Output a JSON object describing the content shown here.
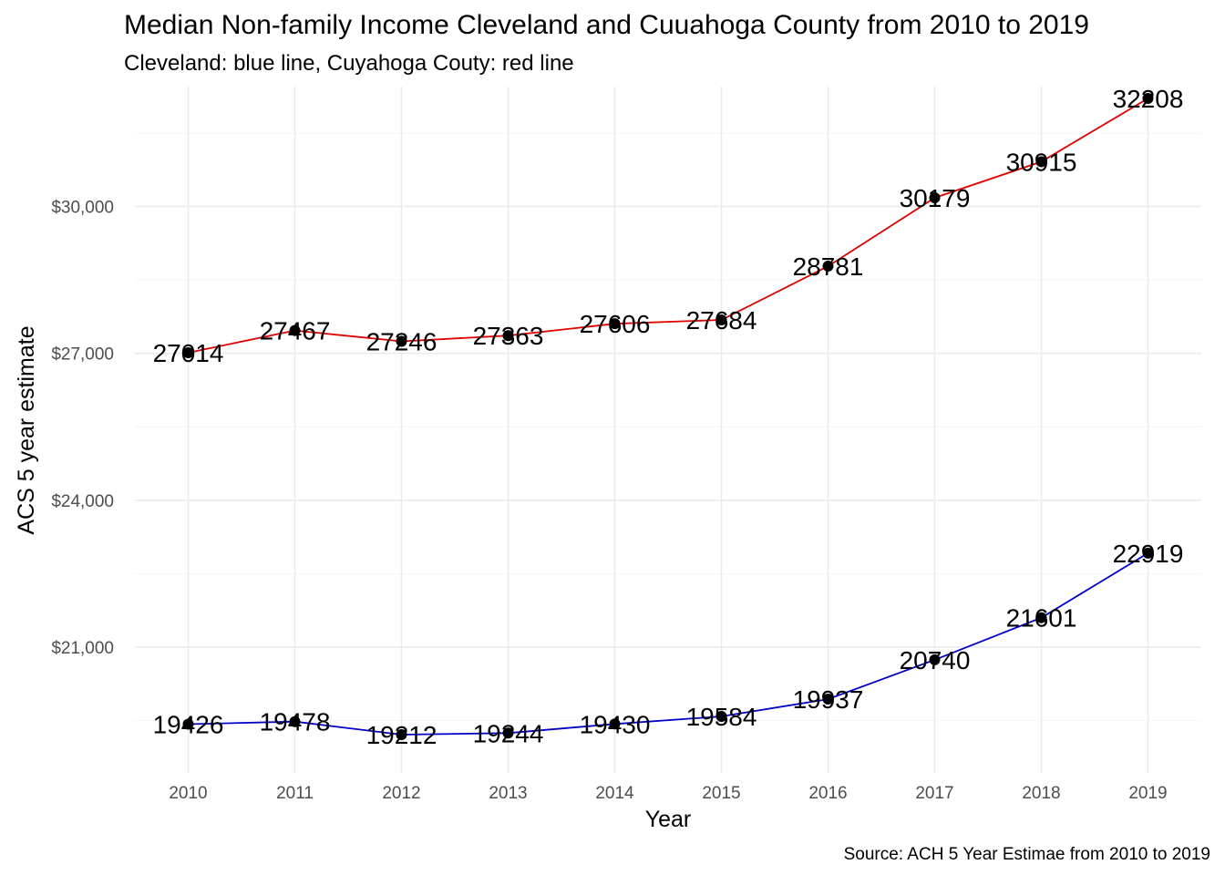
{
  "chart_data": {
    "type": "line",
    "title": "Median Non-family Income Cleveland and Cuuahoga County from 2010 to 2019",
    "subtitle": "Cleveland: blue line, Cuyahoga Couty: red line",
    "caption": "Source: ACH 5 Year Estimae from 2010 to 2019",
    "xlabel": "Year",
    "ylabel": "ACS 5 year estimate",
    "x": [
      2010,
      2011,
      2012,
      2013,
      2014,
      2015,
      2016,
      2017,
      2018,
      2019
    ],
    "x_tick_labels": [
      "2010",
      "2011",
      "2012",
      "2013",
      "2014",
      "2015",
      "2016",
      "2017",
      "2018",
      "2019"
    ],
    "y_ticks": [
      21000,
      24000,
      27000,
      30000
    ],
    "y_tick_labels": [
      "$21,000",
      "$24,000",
      "$27,000",
      "$30,000"
    ],
    "ylim": [
      18430,
      32450
    ],
    "grid": true,
    "series": [
      {
        "color": "#e00000",
        "values": [
          27014,
          27467,
          27246,
          27363,
          27606,
          27684,
          28781,
          30179,
          30915,
          32208
        ],
        "labels": [
          "27014",
          "27467",
          "27246",
          "27363",
          "27606",
          "27684",
          "28781",
          "30179",
          "30915",
          "32208"
        ]
      },
      {
        "color": "#0000c8",
        "values": [
          19426,
          19478,
          19212,
          19244,
          19430,
          19584,
          19937,
          20740,
          21601,
          22919
        ],
        "labels": [
          "19426",
          "19478",
          "19212",
          "19244",
          "19430",
          "19584",
          "19937",
          "20740",
          "21601",
          "22919"
        ]
      }
    ]
  }
}
